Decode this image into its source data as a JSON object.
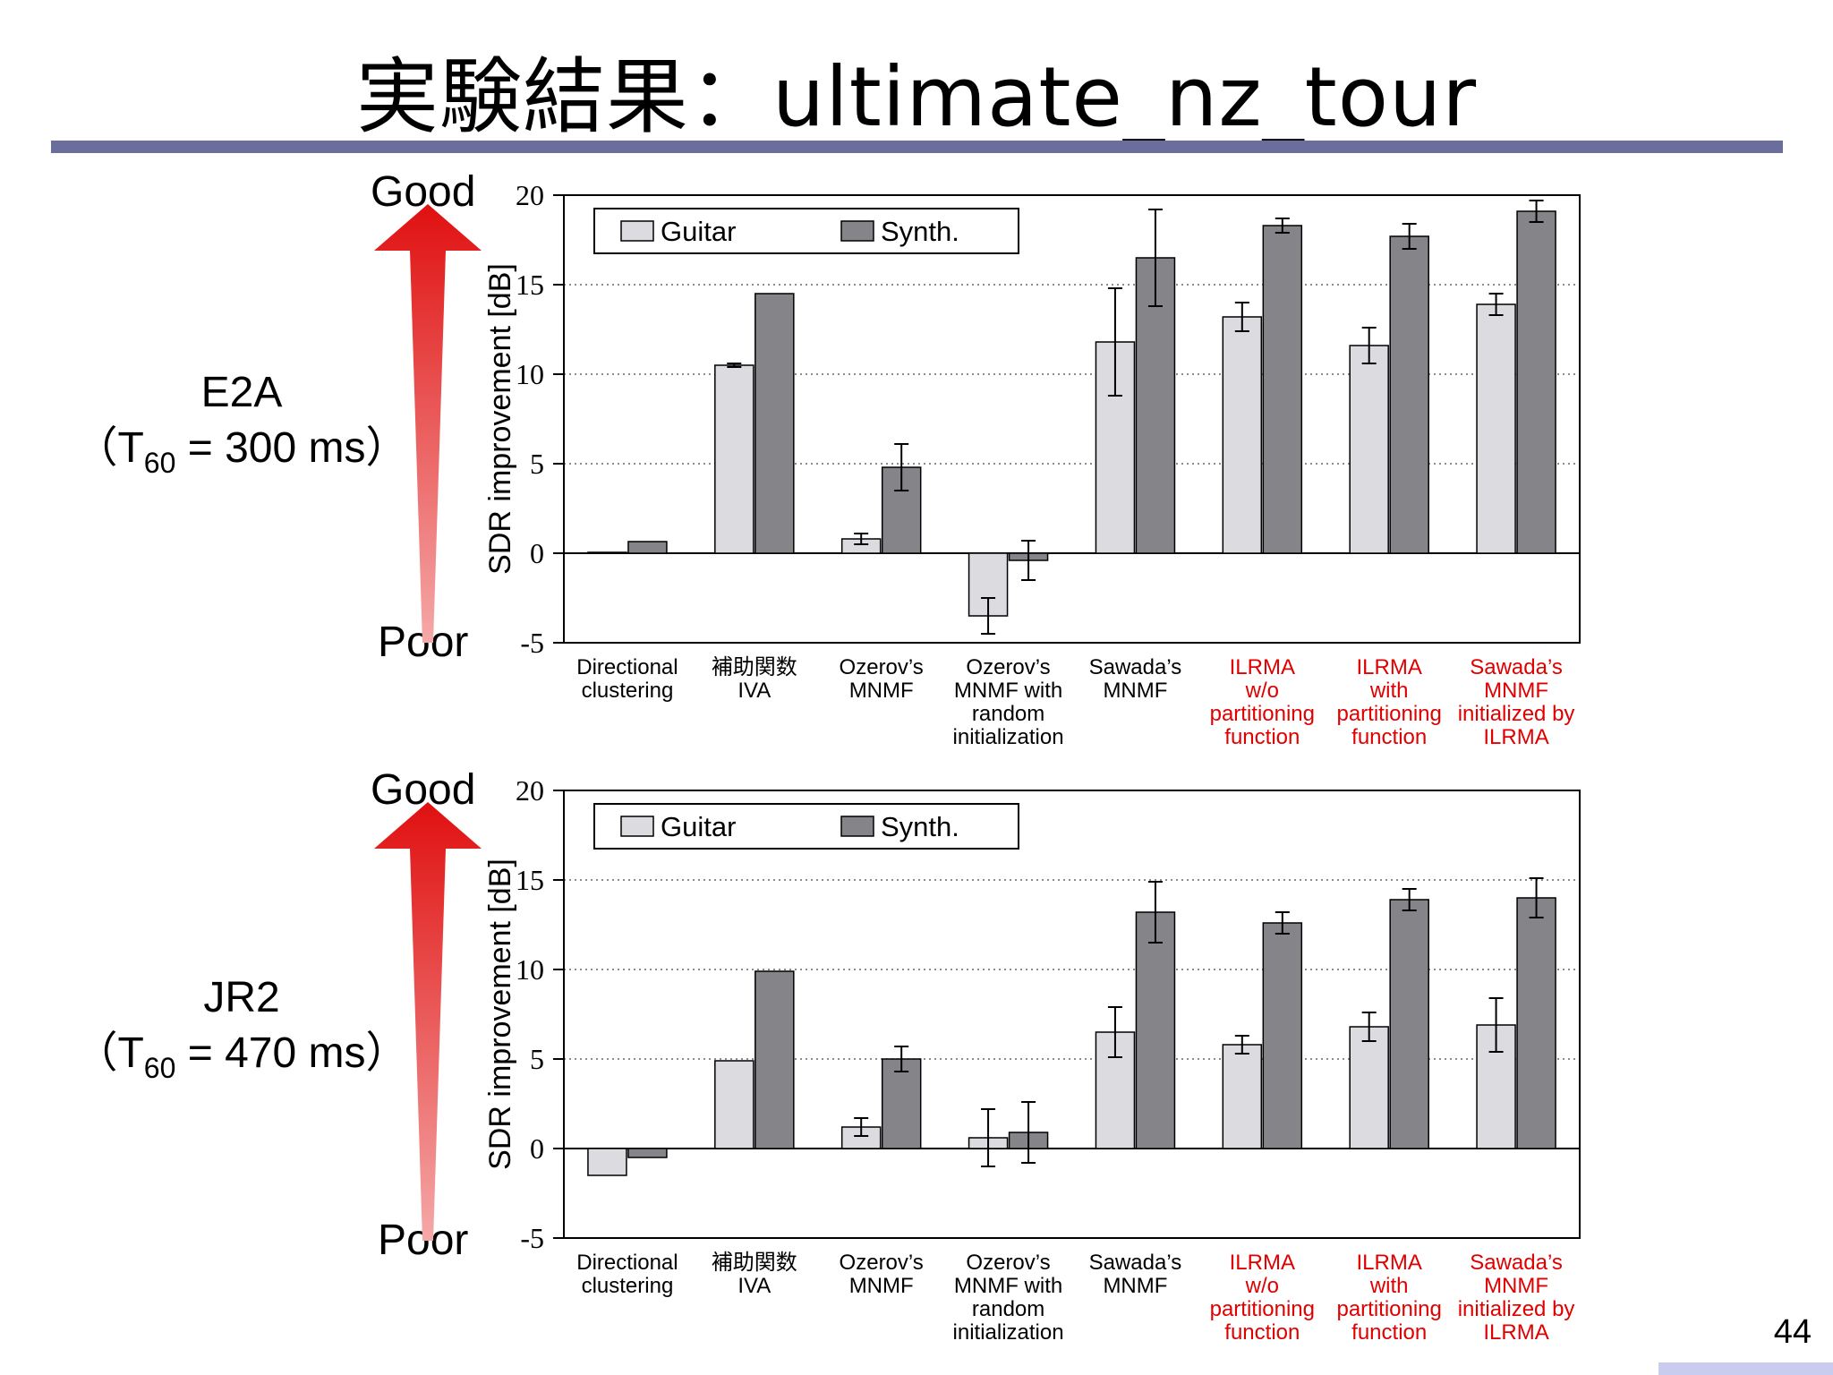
{
  "title": "実験結果：ultimate_nz_tour",
  "page_number": "44",
  "quality_scale": {
    "top": "Good",
    "bottom": "Poor"
  },
  "colors": {
    "guitar": "#dcdce0",
    "synth": "#858589",
    "highlight_text": "#e00000",
    "rule": "#6b6e9c",
    "arrow": "#e01b1b"
  },
  "categories": [
    {
      "lines": [
        "Directional",
        "clustering"
      ],
      "highlight": false
    },
    {
      "lines": [
        "補助関数",
        "IVA"
      ],
      "highlight": false
    },
    {
      "lines": [
        "Ozerov’s",
        "MNMF"
      ],
      "highlight": false
    },
    {
      "lines": [
        "Ozerov’s",
        "MNMF with",
        "random",
        "initialization"
      ],
      "highlight": false
    },
    {
      "lines": [
        "Sawada’s",
        "MNMF"
      ],
      "highlight": false
    },
    {
      "lines": [
        "ILRMA",
        "w/o",
        "partitioning",
        "function"
      ],
      "highlight": true
    },
    {
      "lines": [
        "ILRMA",
        "with",
        "partitioning",
        "function"
      ],
      "highlight": true
    },
    {
      "lines": [
        "Sawada’s",
        "MNMF",
        "initialized by",
        "ILRMA"
      ],
      "highlight": true
    }
  ],
  "chart_data": [
    {
      "type": "bar",
      "condition_name": "E2A",
      "condition_prefix": "（T",
      "condition_sub": "60",
      "condition_suffix": " = 300 ms）",
      "ylabel": "SDR improvement [dB]",
      "ylim": [
        -5,
        20
      ],
      "yticks": [
        -5,
        0,
        5,
        10,
        15,
        20
      ],
      "tick_labels": [
        "-5",
        "0",
        "5",
        "10",
        "15",
        "20"
      ],
      "grid": "dotted horizontal",
      "legend_position": "top-left",
      "series": [
        {
          "name": "Guitar",
          "values": [
            0.05,
            10.5,
            0.8,
            -3.5,
            11.8,
            13.2,
            11.6,
            13.9
          ],
          "err": [
            0.05,
            0.1,
            0.3,
            1.0,
            3.0,
            0.8,
            1.0,
            0.6
          ]
        },
        {
          "name": "Synth.",
          "values": [
            0.65,
            14.5,
            4.8,
            -0.4,
            16.5,
            18.3,
            17.7,
            19.1
          ],
          "err": [
            0.05,
            0.05,
            1.3,
            1.1,
            2.7,
            0.4,
            0.7,
            0.6
          ]
        }
      ]
    },
    {
      "type": "bar",
      "condition_name": "JR2",
      "condition_prefix": "（T",
      "condition_sub": "60",
      "condition_suffix": " = 470 ms）",
      "ylabel": "SDR improvement [dB]",
      "ylim": [
        -5,
        20
      ],
      "yticks": [
        -5,
        0,
        5,
        10,
        15,
        20
      ],
      "tick_labels": [
        "-5",
        "0",
        "5",
        "10",
        "15",
        "20"
      ],
      "grid": "dotted horizontal",
      "legend_position": "top-left",
      "series": [
        {
          "name": "Guitar",
          "values": [
            -1.5,
            4.9,
            1.2,
            0.6,
            6.5,
            5.8,
            6.8,
            6.9
          ],
          "err": [
            0.05,
            0.05,
            0.5,
            1.6,
            1.4,
            0.5,
            0.8,
            1.5
          ]
        },
        {
          "name": "Synth.",
          "values": [
            -0.5,
            9.9,
            5.0,
            0.9,
            13.2,
            12.6,
            13.9,
            14.0
          ],
          "err": [
            0.05,
            0.05,
            0.7,
            1.7,
            1.7,
            0.6,
            0.6,
            1.1
          ]
        }
      ]
    }
  ]
}
